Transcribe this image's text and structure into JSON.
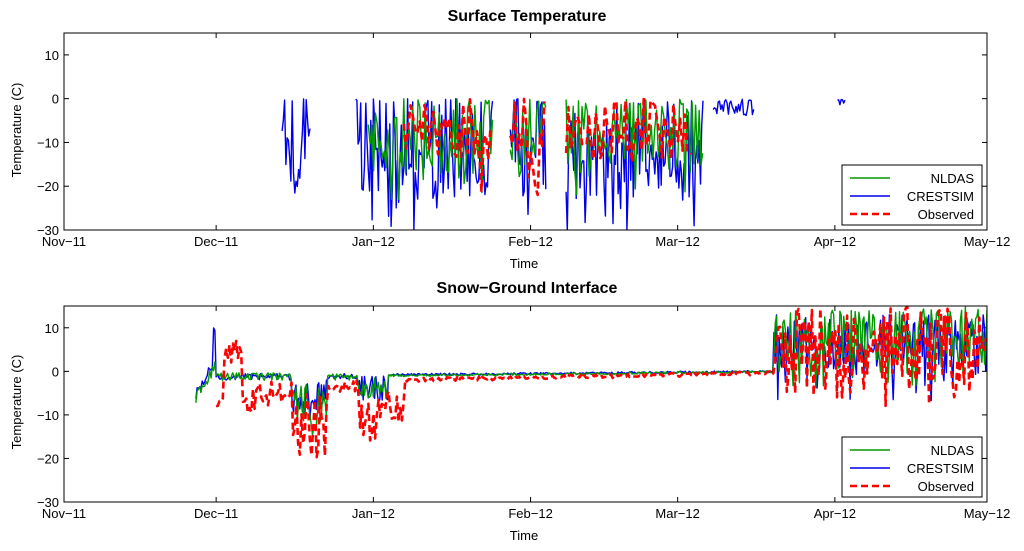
{
  "chart_data": [
    {
      "type": "line",
      "title": "Surface Temperature",
      "xlabel": "Time",
      "ylabel": "Temperature (C)",
      "xlim_days": [
        0,
        182
      ],
      "ylim": [
        -30,
        15
      ],
      "xticks": [
        {
          "day": 0,
          "label": "Nov−11"
        },
        {
          "day": 30,
          "label": "Dec−11"
        },
        {
          "day": 61,
          "label": "Jan−12"
        },
        {
          "day": 92,
          "label": "Feb−12"
        },
        {
          "day": 121,
          "label": "Mar−12"
        },
        {
          "day": 152,
          "label": "Apr−12"
        },
        {
          "day": 182,
          "label": "May−12"
        }
      ],
      "yticks": [
        {
          "value": -30,
          "label": "−30"
        },
        {
          "value": -20,
          "label": "−20"
        },
        {
          "value": -10,
          "label": "−10"
        },
        {
          "value": 0,
          "label": "0"
        },
        {
          "value": 10,
          "label": "10"
        }
      ],
      "legend": {
        "position": "bottom-right",
        "entries": [
          "NLDAS",
          "CRESTSIM",
          "Observed"
        ]
      },
      "series": [
        {
          "name": "NLDAS",
          "color": "#009900",
          "dash": "solid",
          "kind": "surface_nldas",
          "values": []
        },
        {
          "name": "CRESTSIM",
          "color": "#0000ee",
          "dash": "solid",
          "kind": "surface_crest",
          "values": []
        },
        {
          "name": "Observed",
          "color": "#ff0000",
          "dash": "dashed",
          "kind": "surface_obs",
          "values": []
        }
      ]
    },
    {
      "type": "line",
      "title": "Snow−Ground Interface",
      "xlabel": "Time",
      "ylabel": "Temperature (C)",
      "xlim_days": [
        0,
        182
      ],
      "ylim": [
        -30,
        15
      ],
      "xticks": [
        {
          "day": 0,
          "label": "Nov−11"
        },
        {
          "day": 30,
          "label": "Dec−11"
        },
        {
          "day": 61,
          "label": "Jan−12"
        },
        {
          "day": 92,
          "label": "Feb−12"
        },
        {
          "day": 121,
          "label": "Mar−12"
        },
        {
          "day": 152,
          "label": "Apr−12"
        },
        {
          "day": 182,
          "label": "May−12"
        }
      ],
      "yticks": [
        {
          "value": -30,
          "label": "−30"
        },
        {
          "value": -20,
          "label": "−20"
        },
        {
          "value": -10,
          "label": "−10"
        },
        {
          "value": 0,
          "label": "0"
        },
        {
          "value": 10,
          "label": "10"
        }
      ],
      "legend": {
        "position": "bottom-right",
        "entries": [
          "NLDAS",
          "CRESTSIM",
          "Observed"
        ]
      },
      "series": [
        {
          "name": "NLDAS",
          "color": "#009900",
          "dash": "solid",
          "kind": "sgi_nldas",
          "values": []
        },
        {
          "name": "CRESTSIM",
          "color": "#0000ee",
          "dash": "solid",
          "kind": "sgi_crest",
          "values": []
        },
        {
          "name": "Observed",
          "color": "#ff0000",
          "dash": "dashed",
          "kind": "sgi_obs",
          "values": []
        }
      ]
    }
  ]
}
